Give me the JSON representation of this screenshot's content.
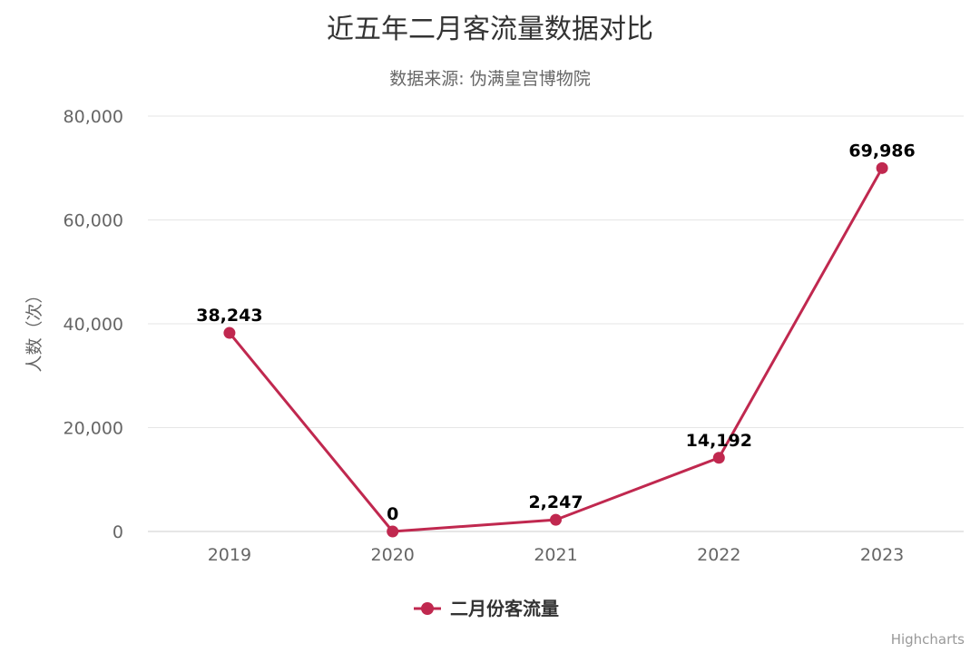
{
  "colors": {
    "series": "#c0284f",
    "grid": "#e6e6e6"
  },
  "credits": "Highcharts",
  "chart_data": {
    "type": "line",
    "title": "近五年二月客流量数据对比",
    "subtitle": "数据来源: 伪满皇宫博物院",
    "xlabel": "",
    "ylabel": "人数（次）",
    "categories": [
      "2019",
      "2020",
      "2021",
      "2022",
      "2023"
    ],
    "ylim": [
      0,
      80000
    ],
    "yticks": [
      0,
      20000,
      40000,
      60000,
      80000
    ],
    "ytick_labels": [
      "0",
      "20,000",
      "40,000",
      "60,000",
      "80,000"
    ],
    "grid": true,
    "legend": "bottom-center",
    "series": [
      {
        "name": "二月份客流量",
        "values": [
          38243,
          0,
          2247,
          14192,
          69986
        ],
        "labels": [
          "38,243",
          "0",
          "2,247",
          "14,192",
          "69,986"
        ]
      }
    ]
  }
}
